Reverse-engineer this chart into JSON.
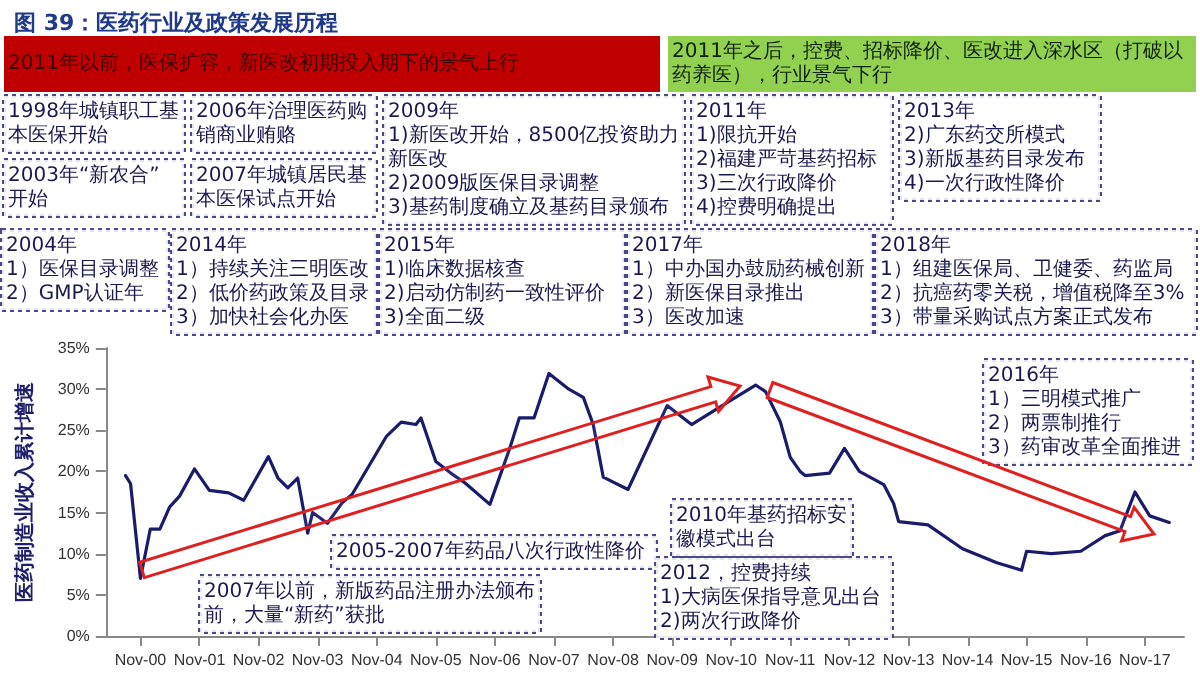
{
  "chart_data": {
    "type": "line",
    "title": "图 39：医药行业及政策发展历程",
    "ylabel": "医药制造业收入累计增速",
    "color": "#1b1b6b",
    "marker": "none",
    "x": [
      "2000-08",
      "2000-09",
      "2000-11",
      "2001-01",
      "2001-03",
      "2001-05",
      "2001-07",
      "2001-10",
      "2002-01",
      "2002-05",
      "2002-08",
      "2003-01",
      "2003-03",
      "2003-05",
      "2003-07",
      "2003-09",
      "2003-10",
      "2004-01",
      "2004-04",
      "2004-06",
      "2005-01",
      "2005-04",
      "2005-07",
      "2005-08",
      "2005-11",
      "2006-02",
      "2006-05",
      "2006-10",
      "2007-02",
      "2007-04",
      "2007-07",
      "2007-10",
      "2008-02",
      "2008-05",
      "2008-07",
      "2008-09",
      "2009-02",
      "2009-10",
      "2010-03",
      "2010-10",
      "2011-04",
      "2011-06",
      "2011-09",
      "2011-11",
      "2012-01",
      "2012-02",
      "2012-07",
      "2012-10",
      "2013-01",
      "2013-06",
      "2013-08",
      "2013-09",
      "2014-03",
      "2014-10",
      "2015-05",
      "2015-10",
      "2015-11",
      "2016-04",
      "2016-10",
      "2017-03",
      "2017-06",
      "2017-09",
      "2017-12",
      "2018-04"
    ],
    "values": [
      19.5,
      18.5,
      7,
      13,
      13,
      15.7,
      17,
      20.3,
      17.7,
      17.4,
      16.5,
      21.8,
      19.2,
      18,
      19.2,
      12.5,
      15,
      13.7,
      16.2,
      17.2,
      24.3,
      26,
      25.7,
      26.5,
      21.2,
      19.8,
      18.6,
      16,
      22.8,
      26.5,
      26.5,
      31.9,
      30,
      29,
      25.7,
      19.3,
      17.8,
      28,
      25.7,
      28.3,
      30.5,
      29.7,
      26,
      21.7,
      20,
      19.5,
      19.8,
      22.8,
      20,
      18.4,
      16.1,
      13.9,
      13.5,
      10.6,
      8.9,
      8,
      10.3,
      10,
      10.3,
      12.2,
      12.8,
      17.5,
      14.6,
      13.8
    ],
    "xlim": [
      "2000-04",
      "2018-07"
    ],
    "xticks": [
      {
        "value": "2000-11",
        "label": "Nov-00"
      },
      {
        "value": "2001-11",
        "label": "Nov-01"
      },
      {
        "value": "2002-11",
        "label": "Nov-02"
      },
      {
        "value": "2003-11",
        "label": "Nov-03"
      },
      {
        "value": "2004-11",
        "label": "Nov-04"
      },
      {
        "value": "2005-11",
        "label": "Nov-05"
      },
      {
        "value": "2006-11",
        "label": "Nov-06"
      },
      {
        "value": "2007-11",
        "label": "Nov-07"
      },
      {
        "value": "2008-11",
        "label": "Nov-08"
      },
      {
        "value": "2009-11",
        "label": "Nov-09"
      },
      {
        "value": "2010-11",
        "label": "Nov-10"
      },
      {
        "value": "2011-11",
        "label": "Nov-11"
      },
      {
        "value": "2012-11",
        "label": "Nov-12"
      },
      {
        "value": "2013-11",
        "label": "Nov-13"
      },
      {
        "value": "2014-11",
        "label": "Nov-14"
      },
      {
        "value": "2015-11",
        "label": "Nov-15"
      },
      {
        "value": "2016-11",
        "label": "Nov-16"
      },
      {
        "value": "2017-11",
        "label": "Nov-17"
      }
    ],
    "ylim": [
      0,
      35
    ],
    "yticks": [
      {
        "value": 0,
        "label": "0%"
      },
      {
        "value": 5,
        "label": "5%"
      },
      {
        "value": 10,
        "label": "10%"
      },
      {
        "value": 15,
        "label": "15%"
      },
      {
        "value": 20,
        "label": "20%"
      },
      {
        "value": 25,
        "label": "25%"
      },
      {
        "value": 30,
        "label": "30%"
      },
      {
        "value": 35,
        "label": "35%"
      }
    ],
    "annotations": [
      "2011年以前，医保扩容，新医改初期投入期下的景气上行",
      "2011年之后，控费、招标降价、医改进入深水区（打破以药养医），行业景气下行",
      "1998年城镇职工基本医保开始",
      "2003年“新农合”开始",
      "2004年\n1）医保目录调整\n2）GMP认证年",
      "2006年治理医药购销商业贿赂",
      "2007年城镇居民基本医保试点开始",
      "2005-2007年药品八次行政性降价",
      "2007年以前，新版药品注册办法颁布前，大量“新药”获批",
      "2009年\n1)新医改开始，8500亿投资助力新医改\n2)2009版医保目录调整\n3)基药制度确立及基药目录颁布",
      "2010年基药招标安徽模式出台",
      "2011年\n1)限抗开始\n2)福建严苛基药招标\n3)三次行政降价\n4)控费明确提出",
      "2012，控费持续\n1)大病医保指导意见出台\n2)两次行政降价",
      "2013年\n2)广东药交所模式\n3)新版基药目录发布\n4)一次行政性降价",
      "2014年\n1）持续关注三明医改\n2）低价药政策及目录\n3）加快社会化办医",
      "2015年\n1)临床数据核查\n2)启动仿制药一致性评价\n3)全面二级",
      "2016年\n1）三明模式推广\n2）两票制推行\n3）药审改革全面推进",
      "2017年\n1）中办国办鼓励药械创新\n2）新医保目录推出\n3）医改加速",
      "2018年\n1）组建医保局、卫健委、药监局\n2）抗癌药零关税，增值税降至3%\n3）带量采购试点方案正式发布"
    ]
  }
}
